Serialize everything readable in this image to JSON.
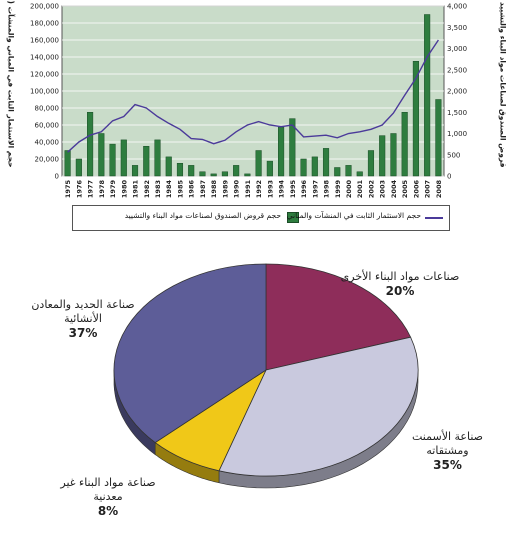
{
  "chart_data": [
    {
      "type": "bar+line",
      "categories": [
        "1975",
        "1976",
        "1977",
        "1978",
        "1979",
        "1980",
        "1981",
        "1982",
        "1983",
        "1984",
        "1985",
        "1986",
        "1987",
        "1988",
        "1989",
        "1990",
        "1991",
        "1992",
        "1993",
        "1994",
        "1995",
        "1996",
        "1997",
        "1998",
        "1999",
        "2000",
        "2001",
        "2002",
        "2003",
        "2004",
        "2005",
        "2006",
        "2007",
        "2008"
      ],
      "series": [
        {
          "name": "حجم قروض الصندوق لصناعات مواد البناء والتشييد",
          "kind": "bar",
          "axis": "right",
          "color": "#2e7d3f",
          "values": [
            600,
            400,
            1500,
            1000,
            750,
            850,
            250,
            700,
            850,
            450,
            300,
            250,
            100,
            50,
            100,
            250,
            50,
            600,
            350,
            1150,
            1350,
            400,
            450,
            650,
            200,
            250,
            100,
            600,
            950,
            1000,
            1500,
            2700,
            3800,
            1800
          ]
        },
        {
          "name": "حجم الاستثمار الثابت في المنشآت والمباني",
          "kind": "line",
          "axis": "left",
          "color": "#4b3a9a",
          "values": [
            28000,
            40000,
            48000,
            52000,
            65000,
            70000,
            84000,
            80000,
            70000,
            62000,
            55000,
            44000,
            43000,
            38000,
            42000,
            52000,
            60000,
            64000,
            60000,
            58000,
            60000,
            46000,
            47000,
            48000,
            45000,
            50000,
            52000,
            55000,
            60000,
            74000,
            95000,
            115000,
            140000,
            160000
          ]
        }
      ],
      "y_left": {
        "min": 0,
        "max": 200000,
        "ticks": [
          "0",
          "20,000",
          "40,000",
          "60,000",
          "80,000",
          "100,000",
          "120,000",
          "140,000",
          "160,000",
          "180,000",
          "200,000"
        ],
        "label": "حجم الاستثمار الثابت في المباني والمنشآت (مليون ريال)"
      },
      "y_right": {
        "min": 0,
        "max": 4000,
        "ticks": [
          "0",
          "500",
          "1,000",
          "1,500",
          "2,000",
          "2,500",
          "3,000",
          "3,500",
          "4,000"
        ],
        "label": "قروض الصندوق لصناعات مواد البناء والتشييد (مليون ريال)"
      },
      "grid": true,
      "plot_background": "#c9dcc9",
      "legend_position": "bottom"
    },
    {
      "type": "pie",
      "slices": [
        {
          "label": "صناعات مواد البناء الأخرى",
          "value": 20,
          "pct": "20%",
          "color": "#8e2d5a"
        },
        {
          "label": "صناعة الأسمنت ومشتقاته",
          "value": 35,
          "pct": "35%",
          "color": "#c9c9de"
        },
        {
          "label": "صناعة مواد البناء غير معدنية",
          "value": 8,
          "pct": "8%",
          "color": "#f0c818"
        },
        {
          "label": "صناعة الحديد والمعادن الأنشائية",
          "value": 37,
          "pct": "37%",
          "color": "#5d5d98"
        }
      ]
    }
  ]
}
